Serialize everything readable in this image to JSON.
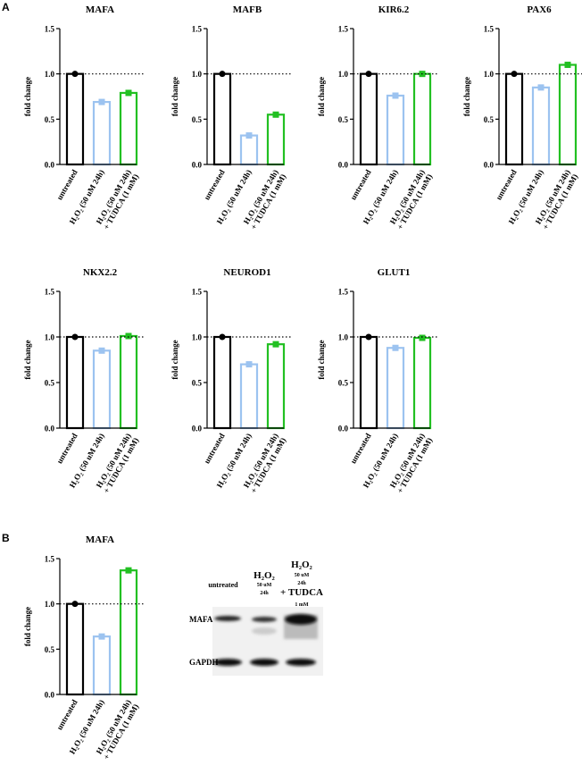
{
  "panels": [
    "A",
    "B"
  ],
  "chart_data": [
    {
      "type": "bar",
      "title": "MAFA",
      "y_label": "fold change",
      "categories": [
        "untreated",
        "H₂O₂ (50 uM 24h)",
        "H₂O₂ (50 uM 24h) + TUDCA (1 mM)"
      ],
      "values": [
        1.0,
        0.69,
        0.79
      ],
      "colors": [
        "#000000",
        "#9cc3f0",
        "#22c022"
      ],
      "ylim": [
        0,
        1.5
      ],
      "yticks": [
        {
          "value": 0,
          "label": "0.0"
        },
        0.5,
        {
          "value": 1,
          "label": "1.0"
        },
        1.5
      ],
      "ref_line": 1.0
    },
    {
      "type": "bar",
      "title": "MAFB",
      "y_label": "fold change",
      "categories": [
        "untreated",
        "H₂O₂ (50 uM 24h)",
        "H₂O₂ (50 uM 24h) + TUDCA (1 mM)"
      ],
      "values": [
        1.0,
        0.32,
        0.55
      ],
      "colors": [
        "#000000",
        "#9cc3f0",
        "#22c022"
      ],
      "ylim": [
        0,
        1.5
      ],
      "yticks": [
        {
          "value": 0,
          "label": "0.0"
        },
        0.5,
        {
          "value": 1,
          "label": "1.0"
        },
        1.5
      ],
      "ref_line": 1.0
    },
    {
      "type": "bar",
      "title": "KIR6.2",
      "y_label": "fold change",
      "categories": [
        "untreated",
        "H₂O₂ (50 uM 24h)",
        "H₂O₂ (50 uM 24h) + TUDCA (1 mM)"
      ],
      "values": [
        1.0,
        0.76,
        1.0
      ],
      "colors": [
        "#000000",
        "#9cc3f0",
        "#22c022"
      ],
      "ylim": [
        0,
        1.5
      ],
      "yticks": [
        {
          "value": 0,
          "label": "0.0"
        },
        0.5,
        {
          "value": 1,
          "label": "1.0"
        },
        1.5
      ],
      "ref_line": 1.0
    },
    {
      "type": "bar",
      "title": "PAX6",
      "y_label": "fold change",
      "categories": [
        "untreated",
        "H₂O₂ (50 uM 24h)",
        "H₂O₂ (50 uM 24h) + TUDCA (1 mM)"
      ],
      "values": [
        1.0,
        0.85,
        1.1
      ],
      "colors": [
        "#000000",
        "#9cc3f0",
        "#22c022"
      ],
      "ylim": [
        0,
        1.5
      ],
      "yticks": [
        {
          "value": 0,
          "label": "0.0"
        },
        0.5,
        {
          "value": 1,
          "label": "1.0"
        },
        1.5
      ],
      "ref_line": 1.0
    },
    {
      "type": "bar",
      "title": "NKX2.2",
      "y_label": "fold change",
      "categories": [
        "untreated",
        "H₂O₂ (50 uM 24h)",
        "H₂O₂ (50 uM 24h) + TUDCA (1 mM)"
      ],
      "values": [
        1.0,
        0.85,
        1.01
      ],
      "colors": [
        "#000000",
        "#9cc3f0",
        "#22c022"
      ],
      "ylim": [
        0,
        1.5
      ],
      "yticks": [
        {
          "value": 0,
          "label": "0.0"
        },
        0.5,
        {
          "value": 1,
          "label": "1.0"
        },
        1.5
      ],
      "ref_line": 1.0
    },
    {
      "type": "bar",
      "title": "NEUROD1",
      "y_label": "fold change",
      "categories": [
        "untreated",
        "H₂O₂ (50 uM 24h)",
        "H₂O₂ (50 uM 24h) + TUDCA (1 mM)"
      ],
      "values": [
        1.0,
        0.7,
        0.92
      ],
      "colors": [
        "#000000",
        "#9cc3f0",
        "#22c022"
      ],
      "ylim": [
        0,
        1.5
      ],
      "yticks": [
        {
          "value": 0,
          "label": "0.0"
        },
        0.5,
        {
          "value": 1,
          "label": "1.0"
        },
        1.5
      ],
      "ref_line": 1.0
    },
    {
      "type": "bar",
      "title": "GLUT1",
      "y_label": "fold change",
      "categories": [
        "untreated",
        "H₂O₂ (50 uM 24h)",
        "H₂O₂ (50 uM 24h) + TUDCA (1 mM)"
      ],
      "values": [
        1.0,
        0.88,
        0.99
      ],
      "colors": [
        "#000000",
        "#9cc3f0",
        "#22c022"
      ],
      "ylim": [
        0,
        1.5
      ],
      "yticks": [
        {
          "value": 0,
          "label": "0.0"
        },
        0.5,
        {
          "value": 1,
          "label": "1.0"
        },
        1.5
      ],
      "ref_line": 1.0
    },
    {
      "type": "bar",
      "title": "MAFA",
      "y_label": "fold change",
      "categories": [
        "untreated",
        "H₂O₂ (50 uM 24h)",
        "H₂O₂ (50 uM 24h) + TUDCA (1 mM)"
      ],
      "values": [
        1.0,
        0.64,
        1.37
      ],
      "colors": [
        "#000000",
        "#9cc3f0",
        "#22c022"
      ],
      "ylim": [
        0,
        1.5
      ],
      "yticks": [
        {
          "value": 0,
          "label": "0.0"
        },
        0.5,
        {
          "value": 1,
          "label": "1.0"
        },
        1.5
      ],
      "ref_line": 1.0
    }
  ],
  "blot": {
    "lanes": [
      [
        "untreated"
      ],
      [
        "H₂O₂",
        "50 uM",
        "24h"
      ],
      [
        "H₂O₂",
        "50 uM",
        "24h",
        "+ TUDCA",
        "1 mM"
      ]
    ],
    "rows": [
      "MAFA",
      "GAPDH"
    ]
  }
}
